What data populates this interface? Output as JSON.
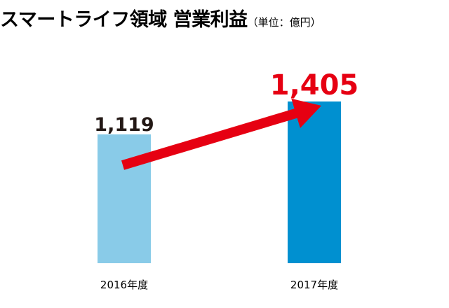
{
  "chart_data": {
    "type": "bar",
    "title": "スマートライフ領域 営業利益",
    "subtitle": "（単位：億円）",
    "categories": [
      "2016年度",
      "2017年度"
    ],
    "values": [
      1119,
      1405
    ],
    "value_labels": [
      "1,119",
      "1,405"
    ],
    "ylim": [
      0,
      1405
    ],
    "colors": [
      "#89cbe8",
      "#0090d0"
    ],
    "label_colors": [
      "#231815",
      "#e60012"
    ],
    "arrow": {
      "from": "2016年度",
      "to": "2017年度",
      "color": "#e60012"
    },
    "grid": false,
    "legend": "none"
  }
}
